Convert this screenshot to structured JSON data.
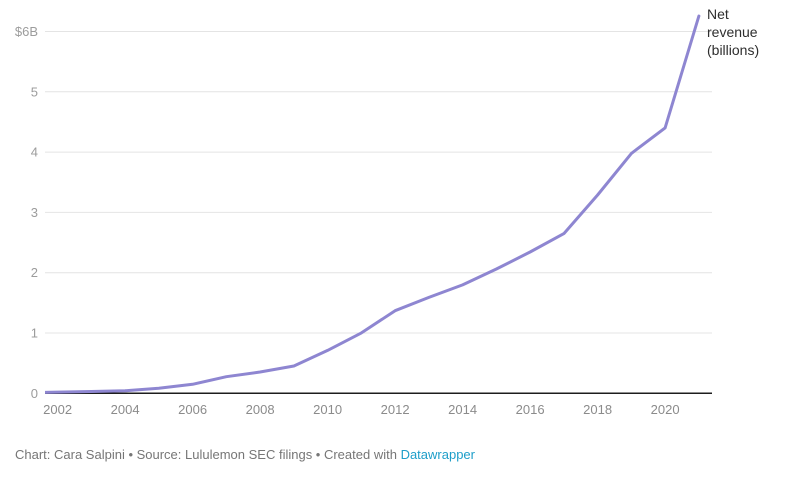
{
  "chart_data": {
    "type": "line",
    "title": "",
    "annotation": "Net\nrevenue\n(billions)",
    "series_name": "Net revenue (billions)",
    "x": [
      2001,
      2002,
      2003,
      2004,
      2005,
      2006,
      2007,
      2008,
      2009,
      2010,
      2011,
      2012,
      2013,
      2014,
      2015,
      2016,
      2017,
      2018,
      2019,
      2020,
      2021
    ],
    "series": [
      {
        "name": "Net revenue (billions)",
        "values": [
          0.01,
          0.02,
          0.03,
          0.041,
          0.084,
          0.149,
          0.275,
          0.354,
          0.453,
          0.712,
          1.001,
          1.37,
          1.591,
          1.797,
          2.061,
          2.344,
          2.649,
          3.288,
          3.979,
          4.402,
          6.257
        ]
      }
    ],
    "x_ticks": [
      2002,
      2004,
      2006,
      2008,
      2010,
      2012,
      2014,
      2016,
      2018,
      2020
    ],
    "y_ticks": [
      0,
      1,
      2,
      3,
      4,
      5,
      6
    ],
    "y_tick_labels": [
      "0",
      "1",
      "2",
      "3",
      "4",
      "5",
      "$6B"
    ],
    "xlim": [
      2001.6,
      2021.4
    ],
    "ylim": [
      0,
      6.5
    ],
    "grid": "horizontal",
    "legend_position": "right-annotation",
    "line_color": "#8e86d1",
    "xlabel": "",
    "ylabel": ""
  },
  "colors": {
    "background": "#ffffff",
    "grid": "#e4e4e4",
    "axis": "#1d1d1d",
    "y_tick_text": "#9c9c9c",
    "x_tick_text": "#8b8b8b",
    "annotation_text": "#2e2e2e",
    "footer_text": "#767676",
    "link": "#1d9ec9"
  },
  "footer": {
    "prefix": "Chart: Cara Salpini • Source: Lululemon SEC filings • Created with ",
    "link_label": "Datawrapper"
  }
}
